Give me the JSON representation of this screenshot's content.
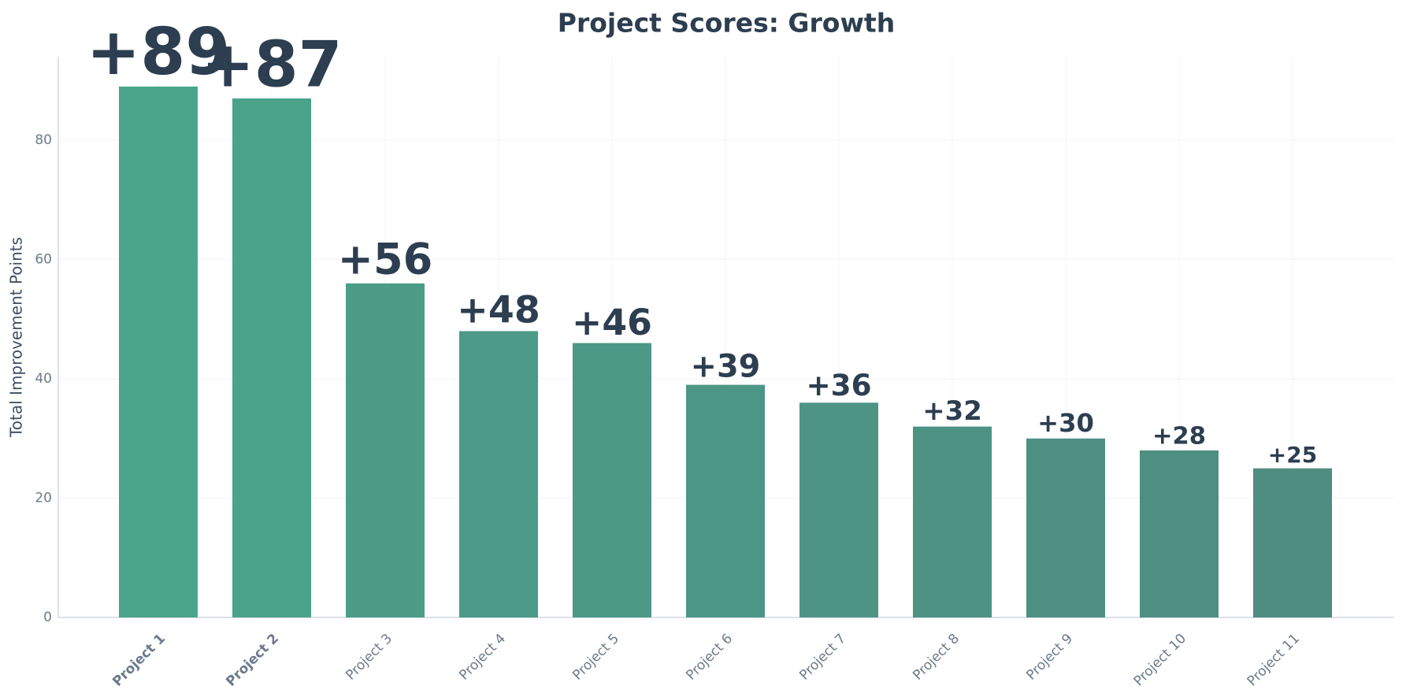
{
  "chart_data": {
    "type": "bar",
    "title": "Project Scores: Growth",
    "y_label": "Total Improvement Points",
    "categories": [
      "Project 1",
      "Project 2",
      "Project 3",
      "Project 4",
      "Project 5",
      "Project 6",
      "Project 7",
      "Project 8",
      "Project 9",
      "Project 10",
      "Project 11"
    ],
    "values": [
      89,
      87,
      56,
      48,
      46,
      39,
      36,
      32,
      30,
      28,
      25
    ],
    "value_labels": [
      "+89",
      "+87",
      "+56",
      "+48",
      "+46",
      "+39",
      "+36",
      "+32",
      "+30",
      "+28",
      "+25"
    ],
    "colors": [
      "#4aa58b",
      "#4aa38a",
      "#4c9c87",
      "#4c9a87",
      "#4c9986",
      "#4c9685",
      "#4d9484",
      "#4d9283",
      "#4d9082",
      "#4d8f81",
      "#4e8d80"
    ],
    "ylim": [
      0,
      94
    ],
    "yticks": [
      0,
      20,
      40,
      60,
      80
    ],
    "grid": true
  }
}
